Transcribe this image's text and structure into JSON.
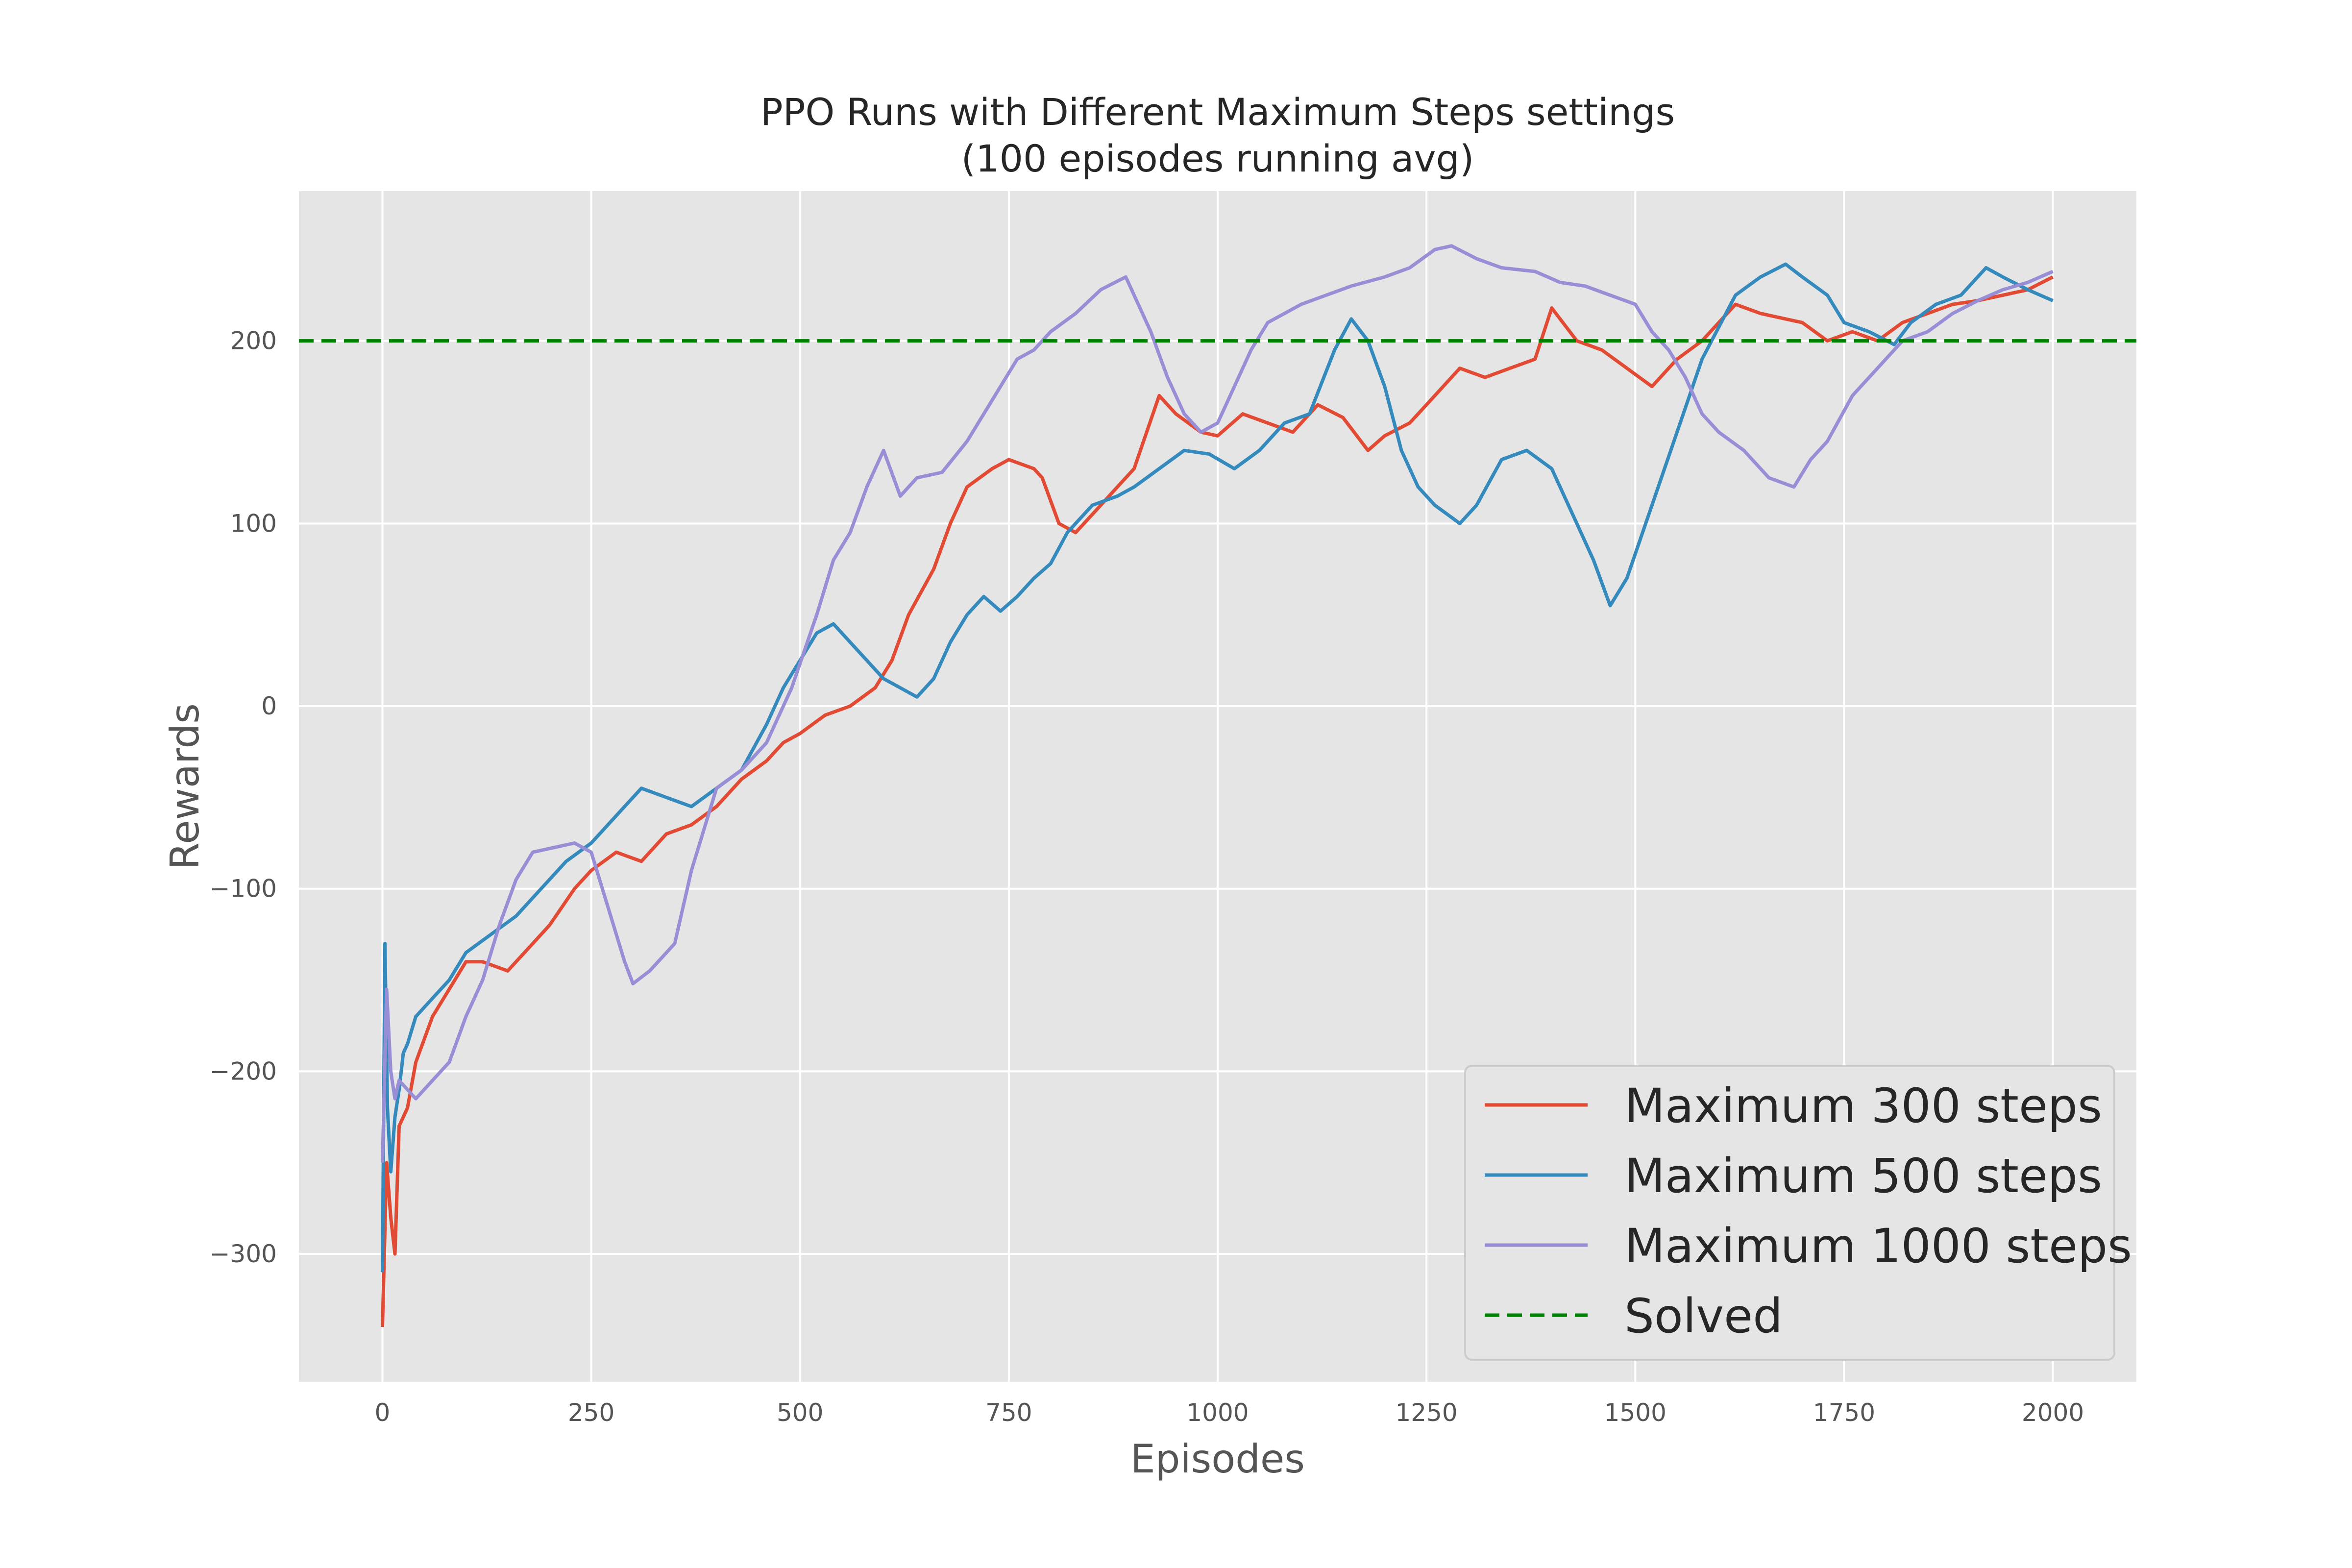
{
  "chart_data": {
    "type": "line",
    "title": "PPO Runs with Different Maximum Steps settings",
    "subtitle": "(100 episodes running avg)",
    "xlabel": "Episodes",
    "ylabel": "Rewards",
    "xlim": [
      -100,
      2100
    ],
    "ylim": [
      -370,
      282
    ],
    "xticks": [
      0,
      250,
      500,
      750,
      1000,
      1250,
      1500,
      1750,
      2000
    ],
    "yticks": [
      -300,
      -200,
      -100,
      0,
      100,
      200
    ],
    "xtick_labels": [
      "0",
      "250",
      "500",
      "750",
      "1000",
      "1250",
      "1500",
      "1750",
      "2000"
    ],
    "ytick_labels": [
      "−300",
      "−200",
      "−100",
      "0",
      "100",
      "200"
    ],
    "grid": true,
    "background": "#e5e5e5",
    "legend_position": "lower-right",
    "solved": {
      "name": "Solved",
      "value": 200,
      "color": "#008000",
      "style": "dashed"
    },
    "series": [
      {
        "name": "Maximum 300 steps",
        "color": "#e24a33",
        "x": [
          0,
          5,
          10,
          15,
          20,
          30,
          40,
          60,
          80,
          100,
          120,
          150,
          170,
          200,
          230,
          250,
          280,
          310,
          340,
          370,
          400,
          430,
          460,
          480,
          500,
          530,
          560,
          590,
          610,
          630,
          660,
          680,
          700,
          730,
          750,
          780,
          790,
          810,
          830,
          850,
          870,
          900,
          930,
          950,
          980,
          1000,
          1030,
          1060,
          1090,
          1120,
          1150,
          1180,
          1200,
          1230,
          1260,
          1290,
          1320,
          1350,
          1380,
          1400,
          1430,
          1460,
          1490,
          1520,
          1550,
          1580,
          1620,
          1650,
          1680,
          1700,
          1730,
          1760,
          1790,
          1820,
          1850,
          1880,
          1910,
          1940,
          1970,
          2000
        ],
        "y": [
          -340,
          -250,
          -280,
          -300,
          -230,
          -220,
          -195,
          -170,
          -155,
          -140,
          -140,
          -145,
          -135,
          -120,
          -100,
          -90,
          -80,
          -85,
          -70,
          -65,
          -55,
          -40,
          -30,
          -20,
          -15,
          -5,
          0,
          10,
          25,
          50,
          75,
          100,
          120,
          130,
          135,
          130,
          125,
          100,
          95,
          105,
          115,
          130,
          170,
          160,
          150,
          148,
          160,
          155,
          150,
          165,
          158,
          140,
          148,
          155,
          170,
          185,
          180,
          185,
          190,
          218,
          200,
          195,
          185,
          175,
          190,
          200,
          220,
          215,
          212,
          210,
          200,
          205,
          200,
          210,
          215,
          220,
          222,
          225,
          228,
          235
        ]
      },
      {
        "name": "Maximum 500 steps",
        "color": "#348abd",
        "x": [
          0,
          3,
          6,
          10,
          15,
          20,
          25,
          30,
          40,
          60,
          80,
          100,
          130,
          160,
          190,
          220,
          250,
          280,
          310,
          340,
          370,
          400,
          430,
          460,
          480,
          500,
          520,
          540,
          560,
          580,
          600,
          620,
          640,
          660,
          680,
          700,
          720,
          740,
          760,
          780,
          800,
          820,
          850,
          880,
          900,
          930,
          960,
          990,
          1020,
          1050,
          1080,
          1110,
          1140,
          1160,
          1180,
          1200,
          1220,
          1240,
          1260,
          1290,
          1310,
          1340,
          1370,
          1400,
          1420,
          1450,
          1470,
          1490,
          1520,
          1550,
          1580,
          1620,
          1650,
          1680,
          1700,
          1730,
          1750,
          1780,
          1810,
          1830,
          1860,
          1890,
          1920,
          1940,
          1970,
          2000
        ],
        "y": [
          -310,
          -130,
          -220,
          -255,
          -225,
          -210,
          -190,
          -185,
          -170,
          -160,
          -150,
          -135,
          -125,
          -115,
          -100,
          -85,
          -75,
          -60,
          -45,
          -50,
          -55,
          -45,
          -35,
          -10,
          10,
          25,
          40,
          45,
          35,
          25,
          15,
          10,
          5,
          15,
          35,
          50,
          60,
          52,
          60,
          70,
          78,
          95,
          110,
          115,
          120,
          130,
          140,
          138,
          130,
          140,
          155,
          160,
          195,
          212,
          200,
          175,
          140,
          120,
          110,
          100,
          110,
          135,
          140,
          130,
          110,
          80,
          55,
          70,
          110,
          150,
          190,
          225,
          235,
          242,
          235,
          225,
          210,
          205,
          198,
          210,
          220,
          225,
          240,
          235,
          228,
          222
        ]
      },
      {
        "name": "Maximum 1000 steps",
        "color": "#988ed5",
        "x": [
          0,
          5,
          10,
          15,
          20,
          30,
          40,
          60,
          80,
          100,
          120,
          140,
          160,
          180,
          200,
          230,
          250,
          270,
          290,
          300,
          320,
          340,
          350,
          370,
          400,
          430,
          460,
          490,
          520,
          540,
          560,
          580,
          600,
          620,
          640,
          670,
          700,
          720,
          740,
          760,
          780,
          800,
          830,
          860,
          890,
          900,
          920,
          940,
          960,
          980,
          1000,
          1020,
          1040,
          1060,
          1080,
          1100,
          1130,
          1160,
          1200,
          1230,
          1260,
          1280,
          1310,
          1340,
          1380,
          1410,
          1440,
          1470,
          1500,
          1520,
          1540,
          1560,
          1580,
          1600,
          1630,
          1660,
          1690,
          1710,
          1730,
          1760,
          1790,
          1820,
          1850,
          1880,
          1910,
          1940,
          1970,
          2000
        ],
        "y": [
          -250,
          -155,
          -200,
          -215,
          -205,
          -210,
          -215,
          -205,
          -195,
          -170,
          -150,
          -120,
          -95,
          -80,
          -78,
          -75,
          -80,
          -110,
          -140,
          -152,
          -145,
          -135,
          -130,
          -90,
          -45,
          -35,
          -20,
          10,
          50,
          80,
          95,
          120,
          140,
          115,
          125,
          128,
          145,
          160,
          175,
          190,
          195,
          205,
          215,
          228,
          235,
          225,
          205,
          180,
          160,
          150,
          155,
          175,
          195,
          210,
          215,
          220,
          225,
          230,
          235,
          240,
          250,
          252,
          245,
          240,
          238,
          232,
          230,
          225,
          220,
          205,
          195,
          180,
          160,
          150,
          140,
          125,
          120,
          135,
          145,
          170,
          185,
          200,
          205,
          215,
          222,
          228,
          232,
          238
        ]
      }
    ]
  }
}
